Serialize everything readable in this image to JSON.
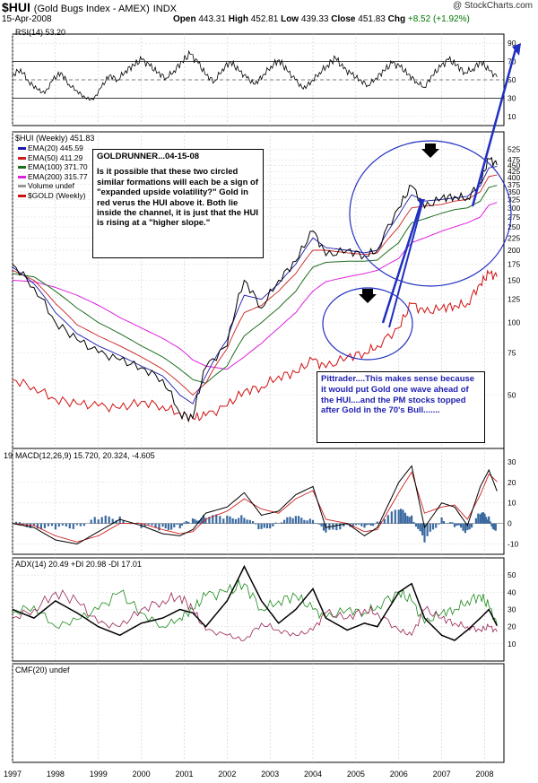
{
  "header": {
    "symbol": "$HUI",
    "description": "(Gold Bugs Index - AMEX)",
    "exchange": "INDX",
    "date": "15-Apr-2008",
    "source": "@ StockCharts.com",
    "open_label": "Open",
    "open": "443.31",
    "high_label": "High",
    "high": "452.81",
    "low_label": "Low",
    "low": "439.33",
    "close_label": "Close",
    "close": "451.83",
    "chg_label": "Chg",
    "chg": "+8.52 (+1.92%)",
    "chg_color": "#007700"
  },
  "chart_data": [
    {
      "type": "line",
      "panel": "rsi",
      "title": "RSI(14) 53.20",
      "y_ticks": [
        10,
        30,
        50,
        70,
        90
      ],
      "ylim": [
        0,
        100
      ],
      "overbought": 70,
      "oversold": 30,
      "series": [
        {
          "values": [
            55,
            62,
            48,
            40,
            35,
            50,
            58,
            45,
            38,
            30,
            28,
            42,
            55,
            50,
            60,
            66,
            72,
            65,
            58,
            52,
            60,
            70,
            78,
            68,
            55,
            48,
            62,
            70,
            60,
            52,
            45,
            55,
            65,
            72,
            60,
            50,
            40,
            48,
            58,
            66,
            74,
            62,
            56,
            50,
            44,
            52,
            60,
            68,
            64,
            56,
            48,
            42,
            55,
            64,
            72,
            66,
            58,
            62,
            70,
            60,
            53
          ]
        }
      ]
    },
    {
      "type": "line",
      "panel": "price",
      "title": "$HUI (Weekly) 451.83",
      "scale": "log",
      "ylim": [
        30,
        600
      ],
      "y_ticks": [
        50,
        75,
        100,
        125,
        150,
        175,
        200,
        225,
        250,
        275,
        300,
        325,
        350,
        375,
        400,
        425,
        450,
        475,
        525
      ],
      "x_ticks": [
        "1997",
        "1998",
        "1999",
        "2000",
        "2001",
        "2002",
        "2003",
        "2004",
        "2005",
        "2006",
        "2007",
        "2008"
      ],
      "x": [
        1997.0,
        1997.5,
        1998.0,
        1998.5,
        1999.0,
        1999.5,
        2000.0,
        2000.5,
        2000.9,
        2001.2,
        2001.5,
        2002.0,
        2002.4,
        2002.8,
        2003.2,
        2003.6,
        2004.0,
        2004.3,
        2004.8,
        2005.2,
        2005.5,
        2006.0,
        2006.3,
        2006.6,
        2007.0,
        2007.3,
        2007.6,
        2007.9,
        2008.1,
        2008.29
      ],
      "series": [
        {
          "name": "$HUI",
          "values": [
            175,
            140,
            100,
            85,
            75,
            70,
            65,
            58,
            42,
            40,
            65,
            80,
            150,
            115,
            150,
            180,
            240,
            190,
            200,
            190,
            200,
            300,
            370,
            300,
            330,
            335,
            330,
            380,
            480,
            452
          ]
        },
        {
          "name": "EMA(20) 445.59",
          "values": [
            170,
            145,
            110,
            90,
            80,
            73,
            66,
            60,
            50,
            46,
            60,
            85,
            130,
            125,
            145,
            175,
            225,
            205,
            200,
            195,
            200,
            280,
            340,
            320,
            325,
            330,
            335,
            370,
            440,
            446
          ]
        },
        {
          "name": "EMA(50) 411.29",
          "values": [
            165,
            150,
            120,
            98,
            88,
            80,
            72,
            64,
            56,
            50,
            56,
            78,
            110,
            118,
            135,
            160,
            200,
            200,
            195,
            192,
            195,
            250,
            300,
            305,
            310,
            320,
            325,
            350,
            405,
            411
          ]
        },
        {
          "name": "EMA(100) 371.70",
          "values": [
            160,
            155,
            135,
            115,
            100,
            90,
            80,
            72,
            64,
            58,
            56,
            66,
            88,
            100,
            115,
            135,
            170,
            178,
            180,
            180,
            182,
            215,
            260,
            270,
            285,
            295,
            300,
            320,
            365,
            372
          ]
        },
        {
          "name": "EMA(200) 315.77",
          "values": [
            150,
            148,
            140,
            130,
            118,
            105,
            95,
            86,
            78,
            70,
            66,
            64,
            72,
            82,
            95,
            110,
            135,
            148,
            155,
            160,
            165,
            185,
            215,
            225,
            240,
            250,
            260,
            275,
            308,
            316
          ]
        },
        {
          "name": "$GOLD (Weekly)",
          "values": [
            58,
            54,
            48,
            46,
            45,
            44,
            47,
            45,
            42,
            40,
            41,
            45,
            52,
            54,
            60,
            62,
            70,
            65,
            72,
            75,
            80,
            95,
            120,
            110,
            115,
            118,
            120,
            145,
            160,
            155
          ]
        }
      ],
      "legend": [
        "EMA(20) 445.59",
        "EMA(50) 411.29",
        "EMA(100) 371.70",
        "EMA(200) 315.77",
        "Volume undef",
        "$GOLD (Weekly)"
      ]
    },
    {
      "type": "line",
      "panel": "macd",
      "title": "MACD(12,26,9) 15.720, 20.324, -4.605",
      "y_ticks": [
        -10,
        0,
        10,
        20,
        30
      ],
      "ylim": [
        -15,
        33
      ],
      "series": [
        {
          "name": "MACD",
          "values": [
            0,
            -2,
            -8,
            -10,
            -4,
            2,
            -1,
            -5,
            -6,
            -3,
            5,
            8,
            15,
            4,
            6,
            14,
            18,
            -2,
            0,
            -6,
            -2,
            20,
            28,
            -2,
            10,
            8,
            -1,
            18,
            26,
            15.72
          ]
        },
        {
          "name": "Signal",
          "values": [
            0,
            -1,
            -6,
            -9,
            -6,
            0,
            0,
            -3,
            -5,
            -4,
            2,
            6,
            12,
            7,
            5,
            12,
            16,
            2,
            0,
            -4,
            -3,
            15,
            25,
            5,
            8,
            9,
            2,
            14,
            24,
            20.324
          ]
        }
      ]
    },
    {
      "type": "line",
      "panel": "adx",
      "title": "ADX(14) 20.49 +DI 20.98 -DI 17.01",
      "y_ticks": [
        10,
        20,
        30,
        40,
        50
      ],
      "ylim": [
        0,
        60
      ],
      "series": [
        {
          "name": "ADX",
          "values": [
            30,
            25,
            35,
            28,
            20,
            15,
            22,
            25,
            30,
            28,
            20,
            35,
            55,
            35,
            22,
            30,
            42,
            25,
            18,
            22,
            20,
            40,
            45,
            25,
            15,
            12,
            18,
            25,
            30,
            20.49
          ]
        },
        {
          "name": "+DI",
          "values": [
            28,
            32,
            20,
            24,
            30,
            40,
            28,
            20,
            25,
            30,
            38,
            40,
            45,
            30,
            35,
            38,
            30,
            25,
            30,
            28,
            32,
            40,
            35,
            22,
            28,
            30,
            35,
            38,
            32,
            20.98
          ]
        },
        {
          "name": "-DI",
          "values": [
            25,
            30,
            40,
            35,
            22,
            20,
            30,
            35,
            38,
            30,
            18,
            15,
            12,
            22,
            18,
            15,
            18,
            28,
            25,
            30,
            28,
            18,
            15,
            30,
            25,
            22,
            20,
            18,
            20,
            17.01
          ]
        }
      ]
    },
    {
      "type": "line",
      "panel": "cmf",
      "title": "CMF(20) undef",
      "x_ticks": [
        "1997",
        "1998",
        "1999",
        "2000",
        "2001",
        "2002",
        "2003",
        "2004",
        "2005",
        "2006",
        "2007",
        "2008"
      ],
      "series": []
    }
  ],
  "annotations": {
    "goldrunner": {
      "title": "GOLDRUNNER...04-15-08",
      "text": "Is it possible that these two circled similar formations will each be a sign of \"expanded upside volatility?\" Gold in red verus the HUI above it. Both lie inside the channel, it is just that the HUI is rising at a \"higher slope.\""
    },
    "pittrader": {
      "text": "Pittrader....This makes sense because it would put Gold one wave ahead of the HUI....and the PM stocks topped after Gold in the 70's Bull......."
    }
  },
  "colors": {
    "hui": "#000000",
    "ema20": "#1a1aaa",
    "ema50": "#cc2020",
    "ema100": "#1e6e1e",
    "ema200": "#dd22dd",
    "gold": "#d01010",
    "annotation_blue": "#2030c0",
    "macd_hist": "#3a6aa0",
    "adx": "#000000",
    "plus_di": "#1a8a1a",
    "minus_di": "#992255"
  }
}
